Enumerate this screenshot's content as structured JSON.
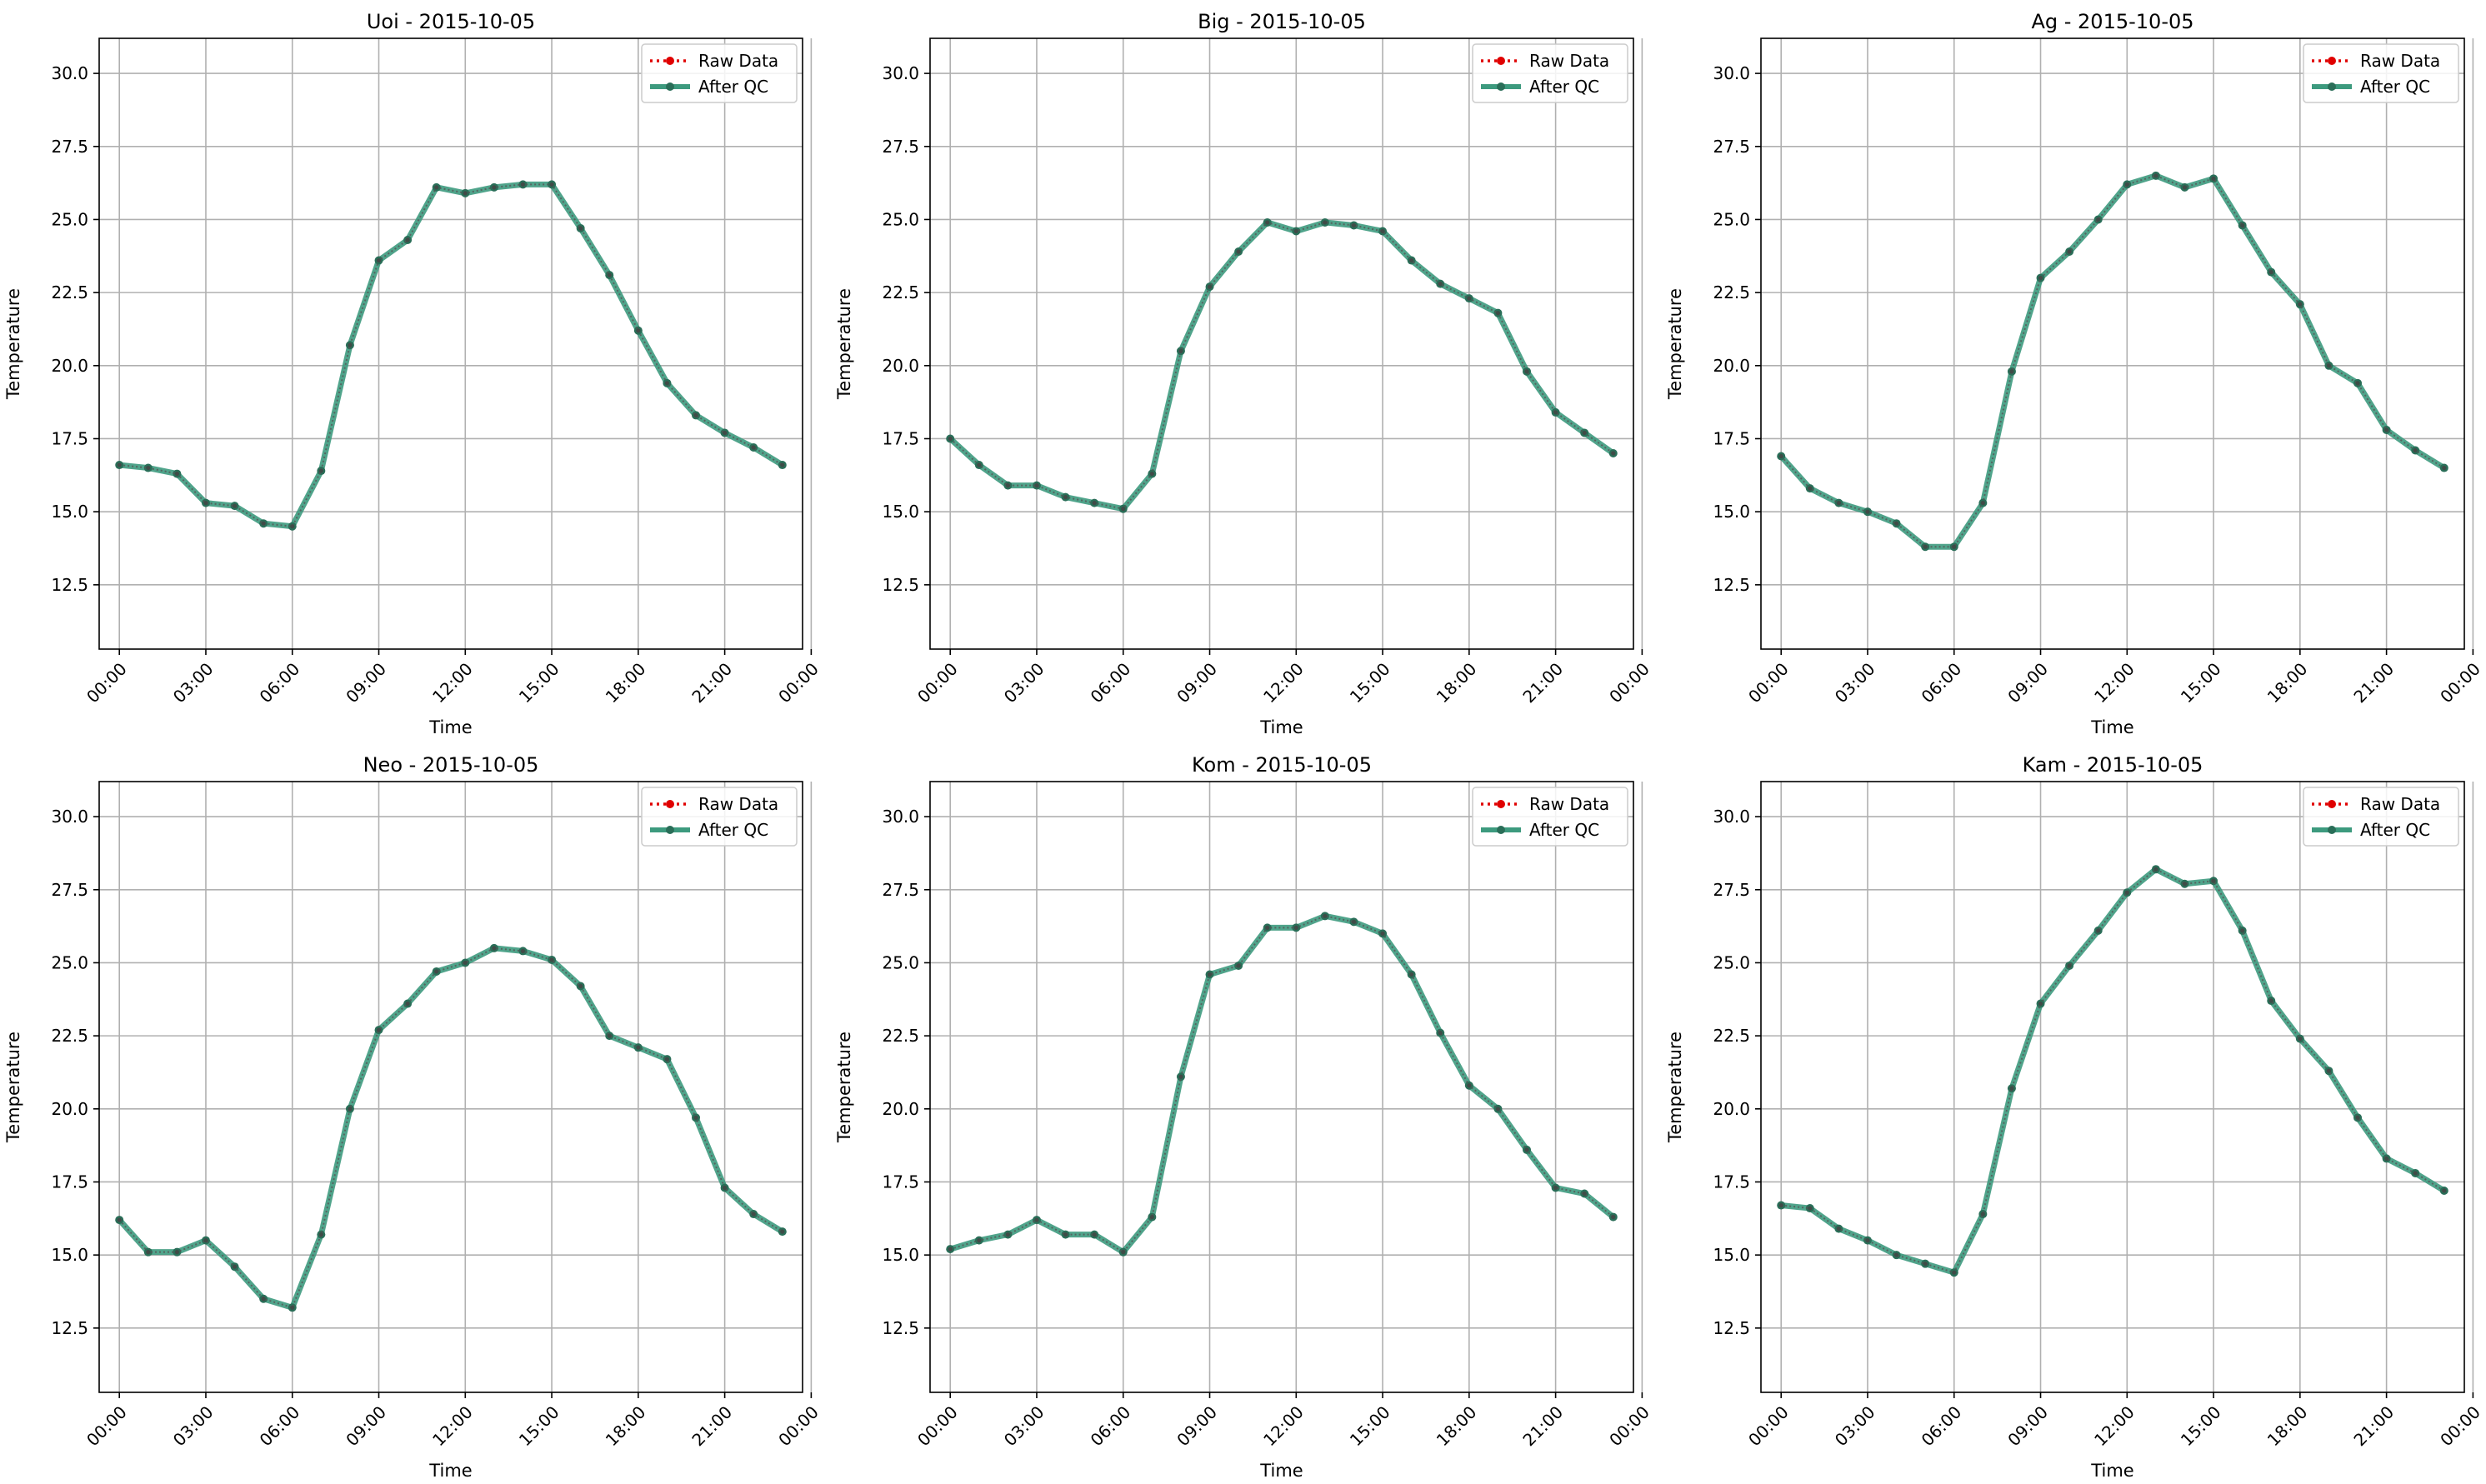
{
  "chart_data": [
    {
      "type": "line",
      "title": "Uoi - 2015-10-05",
      "xlabel": "Time",
      "ylabel": "Temperature",
      "ylim": [
        10.3,
        31.2
      ],
      "yticks": [
        12.5,
        15.0,
        17.5,
        20.0,
        22.5,
        25.0,
        27.5,
        30.0
      ],
      "xlim": [
        -0.7,
        23.7
      ],
      "xticks": [
        0,
        3,
        6,
        9,
        12,
        15,
        18,
        21,
        24
      ],
      "xticklabels": [
        "00:00",
        "03:00",
        "06:00",
        "09:00",
        "12:00",
        "15:00",
        "18:00",
        "21:00",
        "00:00"
      ],
      "grid": true,
      "legend_position": "top-right",
      "legend": [
        "Raw Data",
        "After QC"
      ],
      "x": [
        0,
        1,
        2,
        3,
        4,
        5,
        6,
        7,
        8,
        9,
        10,
        11,
        12,
        13,
        14,
        15,
        16,
        17,
        18,
        19,
        20,
        21,
        22,
        23
      ],
      "series": [
        {
          "name": "Raw Data",
          "values": [
            16.6,
            16.5,
            16.3,
            15.3,
            15.2,
            14.6,
            14.5,
            16.4,
            20.7,
            23.6,
            24.3,
            26.1,
            25.9,
            26.1,
            26.2,
            26.2,
            24.7,
            23.1,
            21.2,
            19.4,
            18.3,
            17.7,
            17.2,
            16.6
          ]
        },
        {
          "name": "After QC",
          "values": [
            16.6,
            16.5,
            16.3,
            15.3,
            15.2,
            14.6,
            14.5,
            16.4,
            20.7,
            23.6,
            24.3,
            26.1,
            25.9,
            26.1,
            26.2,
            26.2,
            24.7,
            23.1,
            21.2,
            19.4,
            18.3,
            17.7,
            17.2,
            16.6
          ]
        }
      ]
    },
    {
      "type": "line",
      "title": "Big - 2015-10-05",
      "xlabel": "Time",
      "ylabel": "Temperature",
      "ylim": [
        10.3,
        31.2
      ],
      "yticks": [
        12.5,
        15.0,
        17.5,
        20.0,
        22.5,
        25.0,
        27.5,
        30.0
      ],
      "xlim": [
        -0.7,
        23.7
      ],
      "xticks": [
        0,
        3,
        6,
        9,
        12,
        15,
        18,
        21,
        24
      ],
      "xticklabels": [
        "00:00",
        "03:00",
        "06:00",
        "09:00",
        "12:00",
        "15:00",
        "18:00",
        "21:00",
        "00:00"
      ],
      "grid": true,
      "legend_position": "top-right",
      "legend": [
        "Raw Data",
        "After QC"
      ],
      "x": [
        0,
        1,
        2,
        3,
        4,
        5,
        6,
        7,
        8,
        9,
        10,
        11,
        12,
        13,
        14,
        15,
        16,
        17,
        18,
        19,
        20,
        21,
        22,
        23
      ],
      "series": [
        {
          "name": "Raw Data",
          "values": [
            17.5,
            16.6,
            15.9,
            15.9,
            15.5,
            15.3,
            15.1,
            16.3,
            20.5,
            22.7,
            23.9,
            24.9,
            24.6,
            24.9,
            24.8,
            24.6,
            23.6,
            22.8,
            22.3,
            21.8,
            19.8,
            18.4,
            17.7,
            17.0
          ]
        },
        {
          "name": "After QC",
          "values": [
            17.5,
            16.6,
            15.9,
            15.9,
            15.5,
            15.3,
            15.1,
            16.3,
            20.5,
            22.7,
            23.9,
            24.9,
            24.6,
            24.9,
            24.8,
            24.6,
            23.6,
            22.8,
            22.3,
            21.8,
            19.8,
            18.4,
            17.7,
            17.0
          ]
        }
      ]
    },
    {
      "type": "line",
      "title": "Ag - 2015-10-05",
      "xlabel": "Time",
      "ylabel": "Temperature",
      "ylim": [
        10.3,
        31.2
      ],
      "yticks": [
        12.5,
        15.0,
        17.5,
        20.0,
        22.5,
        25.0,
        27.5,
        30.0
      ],
      "xlim": [
        -0.7,
        23.7
      ],
      "xticks": [
        0,
        3,
        6,
        9,
        12,
        15,
        18,
        21,
        24
      ],
      "xticklabels": [
        "00:00",
        "03:00",
        "06:00",
        "09:00",
        "12:00",
        "15:00",
        "18:00",
        "21:00",
        "00:00"
      ],
      "grid": true,
      "legend_position": "top-right",
      "legend": [
        "Raw Data",
        "After QC"
      ],
      "x": [
        0,
        1,
        2,
        3,
        4,
        5,
        6,
        7,
        8,
        9,
        10,
        11,
        12,
        13,
        14,
        15,
        16,
        17,
        18,
        19,
        20,
        21,
        22,
        23
      ],
      "series": [
        {
          "name": "Raw Data",
          "values": [
            16.9,
            15.8,
            15.3,
            15.0,
            14.6,
            13.8,
            13.8,
            15.3,
            19.8,
            23.0,
            23.9,
            25.0,
            26.2,
            26.5,
            26.1,
            26.4,
            24.8,
            23.2,
            22.1,
            20.0,
            19.4,
            17.8,
            17.1,
            16.5
          ]
        },
        {
          "name": "After QC",
          "values": [
            16.9,
            15.8,
            15.3,
            15.0,
            14.6,
            13.8,
            13.8,
            15.3,
            19.8,
            23.0,
            23.9,
            25.0,
            26.2,
            26.5,
            26.1,
            26.4,
            24.8,
            23.2,
            22.1,
            20.0,
            19.4,
            17.8,
            17.1,
            16.5
          ]
        }
      ]
    },
    {
      "type": "line",
      "title": "Neo - 2015-10-05",
      "xlabel": "Time",
      "ylabel": "Temperature",
      "ylim": [
        10.3,
        31.2
      ],
      "yticks": [
        12.5,
        15.0,
        17.5,
        20.0,
        22.5,
        25.0,
        27.5,
        30.0
      ],
      "xlim": [
        -0.7,
        23.7
      ],
      "xticks": [
        0,
        3,
        6,
        9,
        12,
        15,
        18,
        21,
        24
      ],
      "xticklabels": [
        "00:00",
        "03:00",
        "06:00",
        "09:00",
        "12:00",
        "15:00",
        "18:00",
        "21:00",
        "00:00"
      ],
      "grid": true,
      "legend_position": "top-right",
      "legend": [
        "Raw Data",
        "After QC"
      ],
      "x": [
        0,
        1,
        2,
        3,
        4,
        5,
        6,
        7,
        8,
        9,
        10,
        11,
        12,
        13,
        14,
        15,
        16,
        17,
        18,
        19,
        20,
        21,
        22,
        23
      ],
      "series": [
        {
          "name": "Raw Data",
          "values": [
            16.2,
            15.1,
            15.1,
            15.5,
            14.6,
            13.5,
            13.2,
            15.7,
            20.0,
            22.7,
            23.6,
            24.7,
            25.0,
            25.5,
            25.4,
            25.1,
            24.2,
            22.5,
            22.1,
            21.7,
            19.7,
            17.3,
            16.4,
            15.8
          ]
        },
        {
          "name": "After QC",
          "values": [
            16.2,
            15.1,
            15.1,
            15.5,
            14.6,
            13.5,
            13.2,
            15.7,
            20.0,
            22.7,
            23.6,
            24.7,
            25.0,
            25.5,
            25.4,
            25.1,
            24.2,
            22.5,
            22.1,
            21.7,
            19.7,
            17.3,
            16.4,
            15.8
          ]
        }
      ]
    },
    {
      "type": "line",
      "title": "Kom - 2015-10-05",
      "xlabel": "Time",
      "ylabel": "Temperature",
      "ylim": [
        10.3,
        31.2
      ],
      "yticks": [
        12.5,
        15.0,
        17.5,
        20.0,
        22.5,
        25.0,
        27.5,
        30.0
      ],
      "xlim": [
        -0.7,
        23.7
      ],
      "xticks": [
        0,
        3,
        6,
        9,
        12,
        15,
        18,
        21,
        24
      ],
      "xticklabels": [
        "00:00",
        "03:00",
        "06:00",
        "09:00",
        "12:00",
        "15:00",
        "18:00",
        "21:00",
        "00:00"
      ],
      "grid": true,
      "legend_position": "top-right",
      "legend": [
        "Raw Data",
        "After QC"
      ],
      "x": [
        0,
        1,
        2,
        3,
        4,
        5,
        6,
        7,
        8,
        9,
        10,
        11,
        12,
        13,
        14,
        15,
        16,
        17,
        18,
        19,
        20,
        21,
        22,
        23
      ],
      "series": [
        {
          "name": "Raw Data",
          "values": [
            15.2,
            15.5,
            15.7,
            16.2,
            15.7,
            15.7,
            15.1,
            16.3,
            21.1,
            24.6,
            24.9,
            26.2,
            26.2,
            26.6,
            26.4,
            26.0,
            24.6,
            22.6,
            20.8,
            20.0,
            18.6,
            17.3,
            17.1,
            16.3
          ]
        },
        {
          "name": "After QC",
          "values": [
            15.2,
            15.5,
            15.7,
            16.2,
            15.7,
            15.7,
            15.1,
            16.3,
            21.1,
            24.6,
            24.9,
            26.2,
            26.2,
            26.6,
            26.4,
            26.0,
            24.6,
            22.6,
            20.8,
            20.0,
            18.6,
            17.3,
            17.1,
            16.3
          ]
        }
      ]
    },
    {
      "type": "line",
      "title": "Kam - 2015-10-05",
      "xlabel": "Time",
      "ylabel": "Temperature",
      "ylim": [
        10.3,
        31.2
      ],
      "yticks": [
        12.5,
        15.0,
        17.5,
        20.0,
        22.5,
        25.0,
        27.5,
        30.0
      ],
      "xlim": [
        -0.7,
        23.7
      ],
      "xticks": [
        0,
        3,
        6,
        9,
        12,
        15,
        18,
        21,
        24
      ],
      "xticklabels": [
        "00:00",
        "03:00",
        "06:00",
        "09:00",
        "12:00",
        "15:00",
        "18:00",
        "21:00",
        "00:00"
      ],
      "grid": true,
      "legend_position": "top-right",
      "legend": [
        "Raw Data",
        "After QC"
      ],
      "x": [
        0,
        1,
        2,
        3,
        4,
        5,
        6,
        7,
        8,
        9,
        10,
        11,
        12,
        13,
        14,
        15,
        16,
        17,
        18,
        19,
        20,
        21,
        22,
        23
      ],
      "series": [
        {
          "name": "Raw Data",
          "values": [
            16.7,
            16.6,
            15.9,
            15.5,
            15.0,
            14.7,
            14.4,
            16.4,
            20.7,
            23.6,
            24.9,
            26.1,
            27.4,
            28.2,
            27.7,
            27.8,
            26.1,
            23.7,
            22.4,
            21.3,
            19.7,
            18.3,
            17.8,
            17.2
          ]
        },
        {
          "name": "After QC",
          "values": [
            16.7,
            16.6,
            15.9,
            15.5,
            15.0,
            14.7,
            14.4,
            16.4,
            20.7,
            23.6,
            24.9,
            26.1,
            27.4,
            28.2,
            27.7,
            27.8,
            26.1,
            23.7,
            22.4,
            21.3,
            19.7,
            18.3,
            17.8,
            17.2
          ]
        }
      ]
    }
  ],
  "colors": {
    "raw": "#e00000",
    "qc_line": "#3d9a7e",
    "qc_marker": "#2a6e58",
    "grid": "#b0b0b0",
    "axis": "#000000",
    "legend_border": "#cccccc"
  }
}
